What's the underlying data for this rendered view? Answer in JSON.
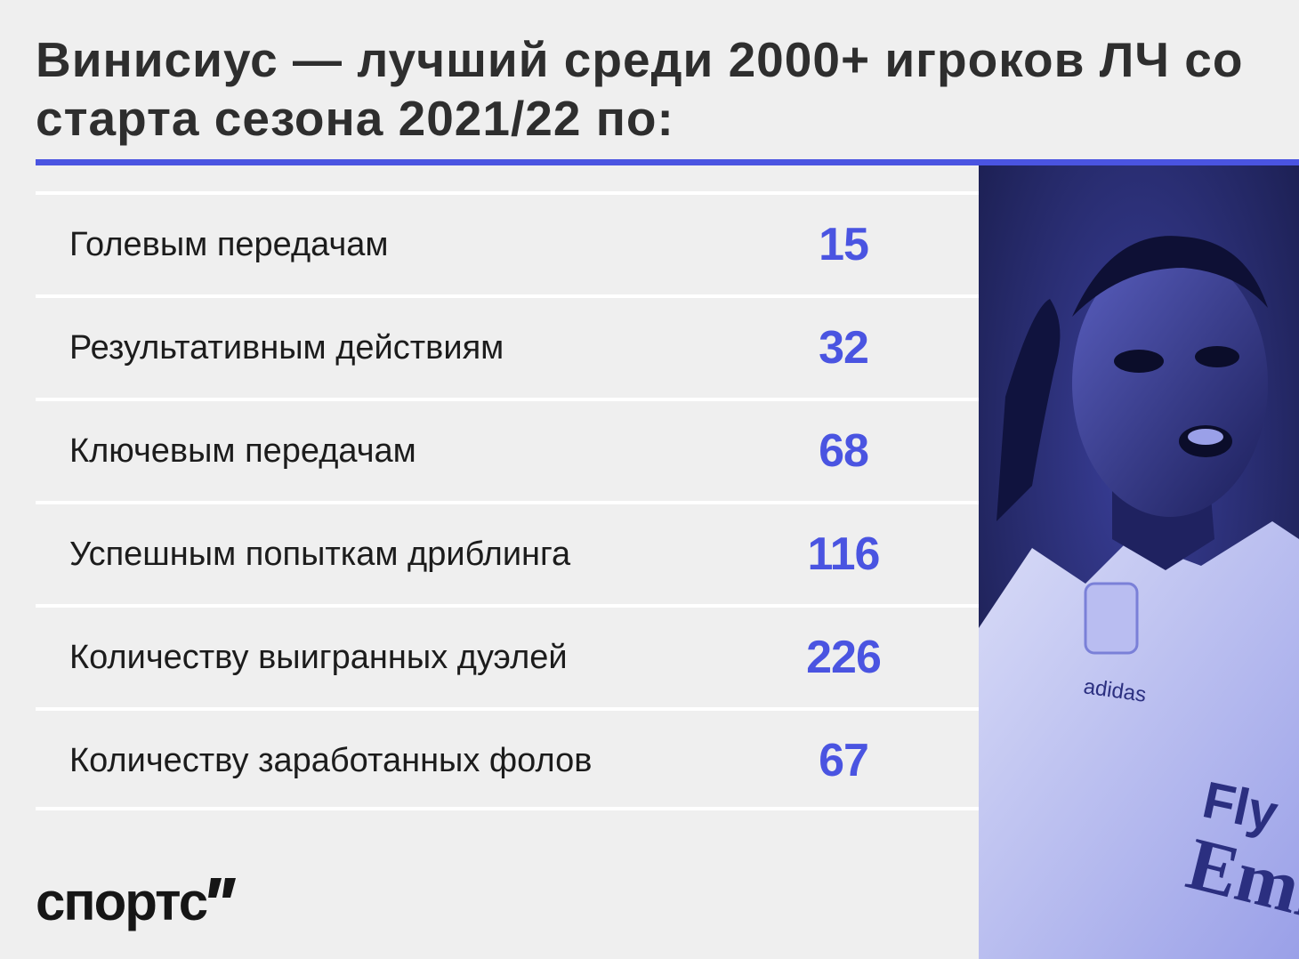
{
  "title": "Винисиус — лучший среди 2000+ игроков ЛЧ со старта сезона 2021/22 по:",
  "colors": {
    "accent": "#4a54e1",
    "background": "#efefef",
    "text": "#1c1c1c",
    "divider": "#ffffff"
  },
  "chart_data": {
    "type": "table",
    "rows": [
      {
        "label": "Голевым передачам",
        "value": "15"
      },
      {
        "label": "Результативным действиям",
        "value": "32"
      },
      {
        "label": "Ключевым передачам",
        "value": "68"
      },
      {
        "label": "Успешным попыткам дриблинга",
        "value": "116"
      },
      {
        "label": "Количеству выигранных дуэлей",
        "value": "226"
      },
      {
        "label": "Количеству заработанных фолов",
        "value": "67"
      }
    ]
  },
  "photo": {
    "jersey_text_top": "Fly",
    "jersey_text_bottom": "Emira",
    "brand_text": "adidas"
  },
  "logo": {
    "text": "спортс",
    "icon": "quote-mark-icon"
  }
}
